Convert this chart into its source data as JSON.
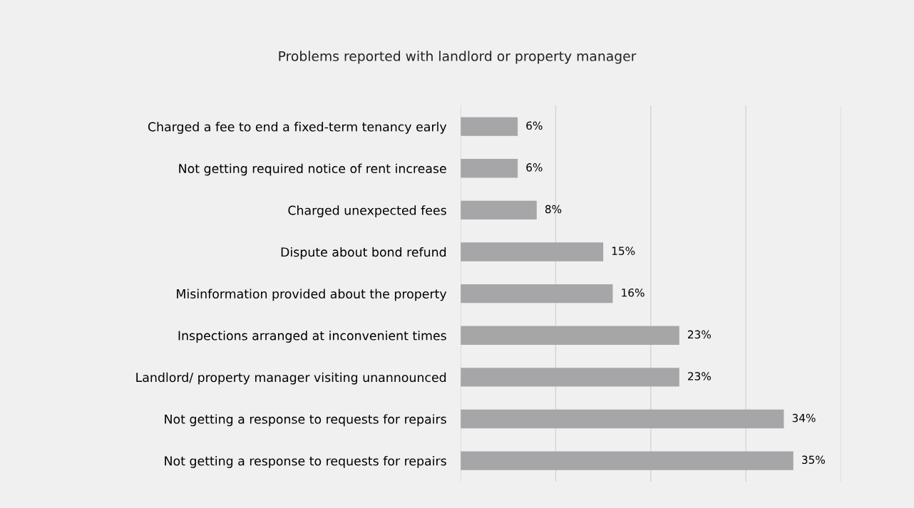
{
  "chart_data": {
    "type": "bar",
    "orientation": "horizontal",
    "title": "Problems reported with landlord or property manager",
    "categories": [
      "Charged a fee to end a fixed-term tenancy early",
      "Not getting required notice of rent increase",
      "Charged unexpected fees",
      "Dispute about bond refund",
      "Misinformation provided about the property",
      "Inspections arranged at inconvenient times",
      "Landlord/ property manager visiting unannounced",
      "Not getting a response to requests for repairs",
      "Not getting a response to requests for repairs"
    ],
    "values": [
      6,
      6,
      8,
      15,
      16,
      23,
      23,
      34,
      35
    ],
    "value_labels": [
      "6%",
      "6%",
      "8%",
      "15%",
      "16%",
      "23%",
      "23%",
      "34%",
      "35%"
    ],
    "color": "#a6a6a8",
    "xlim": [
      0,
      40
    ],
    "xticks": [
      {
        "value": 0,
        "label": null
      },
      {
        "value": 10,
        "label": null
      },
      {
        "value": 20,
        "label": null
      },
      {
        "value": 30,
        "label": null
      },
      {
        "value": 40,
        "label": null
      }
    ],
    "grid": "x",
    "tick_labels": "y"
  }
}
